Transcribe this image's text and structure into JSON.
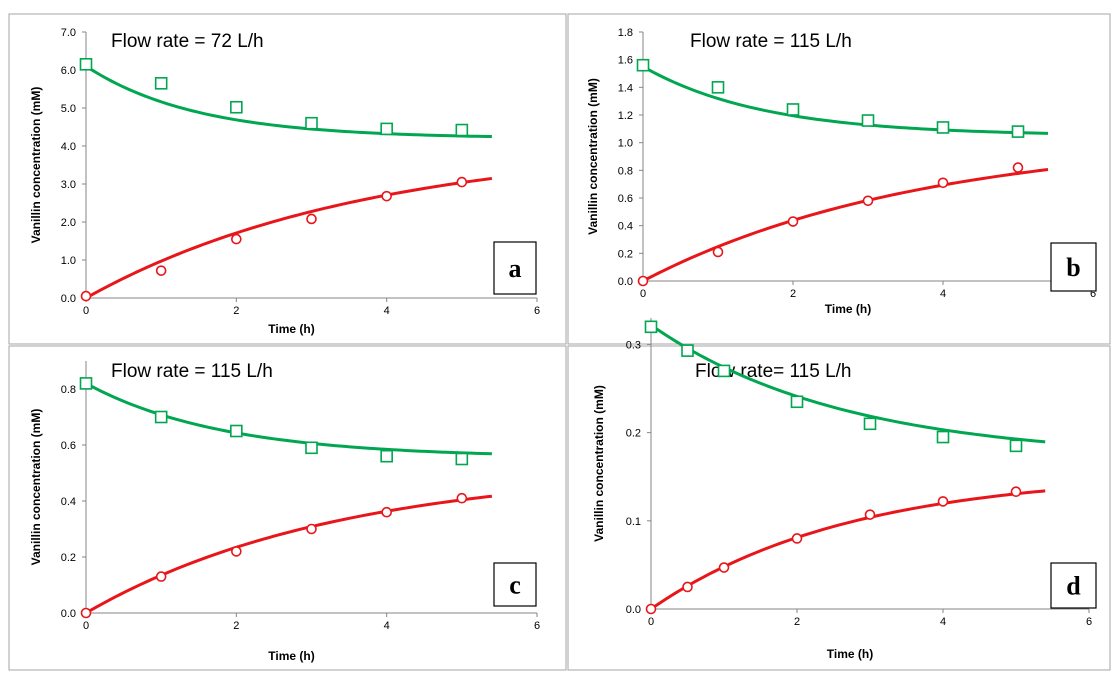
{
  "chart_data": [
    {
      "type": "scatter",
      "panel_label": "a",
      "title": "Flow rate = 72 L/h",
      "xlabel": "Time (h)",
      "ylabel": "Vanillin concentration (mM)",
      "xlim": [
        0,
        6
      ],
      "ylim": [
        0,
        7
      ],
      "xticks": [
        0,
        2,
        4,
        6
      ],
      "yticks": [
        0,
        1,
        2,
        3,
        4,
        5,
        6,
        7
      ],
      "ytick_labels": [
        "0.0",
        "1.0",
        "2.0",
        "3.0",
        "4.0",
        "5.0",
        "6.0",
        "7.0"
      ],
      "grid": false,
      "series": [
        {
          "marker": "square",
          "color": "#00a650",
          "x": [
            0,
            1,
            2,
            3,
            4,
            5
          ],
          "y": [
            6.15,
            5.65,
            5.02,
            4.6,
            4.45,
            4.42
          ],
          "fit": {
            "model": "decay",
            "y0": 6.1,
            "yinf": 4.2,
            "k": 0.68,
            "xmax": 5.4
          }
        },
        {
          "marker": "circle",
          "color": "#e8161b",
          "x": [
            0,
            1,
            2,
            3,
            4,
            5
          ],
          "y": [
            0.05,
            0.72,
            1.55,
            2.08,
            2.68,
            3.05
          ],
          "fit": {
            "model": "rise",
            "y0": 0.0,
            "yinf": 4.1,
            "k": 0.27,
            "xmax": 5.4
          }
        }
      ]
    },
    {
      "type": "scatter",
      "panel_label": "b",
      "title": "Flow rate = 115 L/h",
      "xlabel": "Time  (h)",
      "ylabel": "Vanillin  concentration  (mM)",
      "xlim": [
        0,
        6
      ],
      "ylim": [
        0,
        1.8
      ],
      "xticks": [
        0,
        2,
        4,
        6
      ],
      "yticks": [
        0,
        0.2,
        0.4,
        0.6,
        0.8,
        1.0,
        1.2,
        1.4,
        1.6,
        1.8
      ],
      "ytick_labels": [
        "0.0",
        "0.2",
        "0.4",
        "0.6",
        "0.8",
        "1.0",
        "1.2",
        "1.4",
        "1.6",
        "1.8"
      ],
      "grid": false,
      "series": [
        {
          "marker": "square",
          "color": "#00a650",
          "x": [
            0,
            1,
            2,
            3,
            4,
            5
          ],
          "y": [
            1.56,
            1.4,
            1.24,
            1.16,
            1.11,
            1.08
          ],
          "fit": {
            "model": "decay",
            "y0": 1.55,
            "yinf": 1.05,
            "k": 0.62,
            "xmax": 5.4
          }
        },
        {
          "marker": "circle",
          "color": "#e8161b",
          "x": [
            0,
            1,
            2,
            3,
            4,
            5
          ],
          "y": [
            0.0,
            0.21,
            0.43,
            0.58,
            0.71,
            0.82
          ],
          "fit": {
            "model": "rise",
            "y0": 0.0,
            "yinf": 1.05,
            "k": 0.27,
            "xmax": 5.4
          }
        }
      ]
    },
    {
      "type": "scatter",
      "panel_label": "c",
      "title": "Flow rate = 115 L/h",
      "xlabel": "Time  (h)",
      "ylabel": "Vanillin concentration (mM)",
      "xlim": [
        0,
        6
      ],
      "ylim": [
        0,
        0.9
      ],
      "xticks": [
        0,
        2,
        4,
        6
      ],
      "yticks": [
        0,
        0.2,
        0.4,
        0.6,
        0.8
      ],
      "ytick_labels": [
        "0.0",
        "0.2",
        "0.4",
        "0.6",
        "0.8"
      ],
      "grid": false,
      "series": [
        {
          "marker": "square",
          "color": "#00a650",
          "x": [
            0,
            1,
            2,
            3,
            4,
            5
          ],
          "y": [
            0.82,
            0.7,
            0.65,
            0.59,
            0.56,
            0.55
          ],
          "fit": {
            "model": "decay",
            "y0": 0.82,
            "yinf": 0.555,
            "k": 0.55,
            "xmax": 5.4
          }
        },
        {
          "marker": "circle",
          "color": "#e8161b",
          "x": [
            0,
            1,
            2,
            3,
            4,
            5
          ],
          "y": [
            0.0,
            0.13,
            0.22,
            0.3,
            0.36,
            0.41
          ],
          "fit": {
            "model": "rise",
            "y0": 0.0,
            "yinf": 0.52,
            "k": 0.3,
            "xmax": 5.4
          }
        }
      ]
    },
    {
      "type": "scatter",
      "panel_label": "d",
      "title": "Flow rate= 115 L/h",
      "xlabel": "Time  (h)",
      "ylabel": "Vanillin concentration  (mM)",
      "xlim": [
        0,
        6
      ],
      "ylim": [
        0,
        0.33
      ],
      "xticks": [
        0,
        2,
        4,
        6
      ],
      "yticks": [
        0,
        0.1,
        0.2,
        0.3
      ],
      "ytick_labels": [
        "0.0",
        "0.1",
        "0.2",
        "0.3"
      ],
      "grid": false,
      "series": [
        {
          "marker": "square",
          "color": "#00a650",
          "x": [
            0,
            0.5,
            1,
            2,
            3,
            4,
            5
          ],
          "y": [
            0.32,
            0.293,
            0.27,
            0.235,
            0.21,
            0.195,
            0.185
          ],
          "fit": {
            "model": "decay",
            "y0": 0.322,
            "yinf": 0.17,
            "k": 0.38,
            "xmax": 5.4
          }
        },
        {
          "marker": "circle",
          "color": "#e8161b",
          "x": [
            0,
            0.5,
            1,
            2,
            3,
            4,
            5
          ],
          "y": [
            0.0,
            0.025,
            0.047,
            0.08,
            0.107,
            0.122,
            0.133
          ],
          "fit": {
            "model": "rise",
            "y0": 0.0,
            "yinf": 0.155,
            "k": 0.37,
            "xmax": 5.4
          }
        }
      ]
    }
  ]
}
